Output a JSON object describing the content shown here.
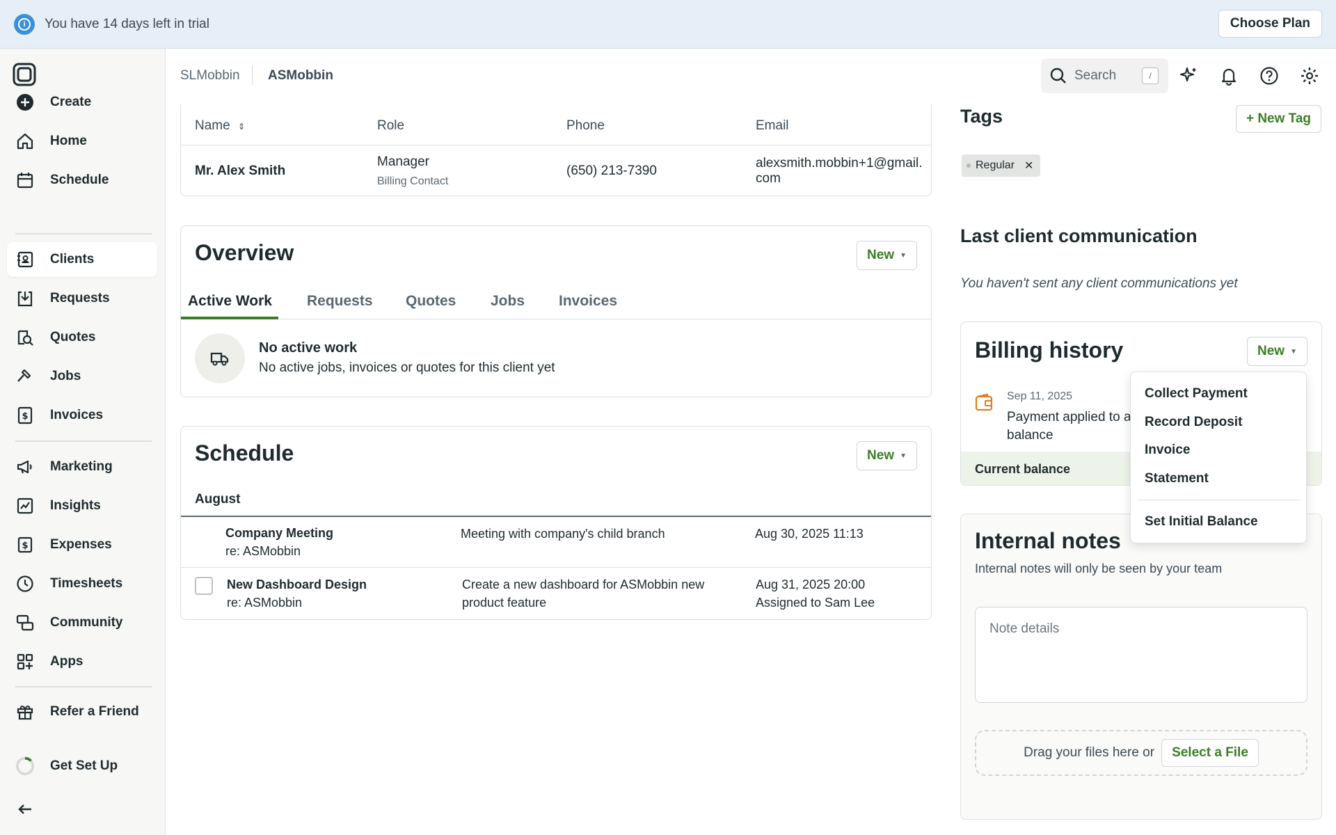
{
  "banner": {
    "message": "You have 14 days left in trial",
    "cta": "Choose Plan"
  },
  "sidebar": {
    "items": [
      {
        "label": "Create",
        "icon": "plus-circle-icon"
      },
      {
        "label": "Home",
        "icon": "home-icon"
      },
      {
        "label": "Schedule",
        "icon": "calendar-icon"
      },
      {
        "label": "Clients",
        "icon": "clients-icon",
        "active": true
      },
      {
        "label": "Requests",
        "icon": "requests-icon"
      },
      {
        "label": "Quotes",
        "icon": "quotes-icon"
      },
      {
        "label": "Jobs",
        "icon": "hammer-icon"
      },
      {
        "label": "Invoices",
        "icon": "invoice-icon"
      },
      {
        "label": "Marketing",
        "icon": "megaphone-icon"
      },
      {
        "label": "Insights",
        "icon": "chart-icon"
      },
      {
        "label": "Expenses",
        "icon": "expenses-icon"
      },
      {
        "label": "Timesheets",
        "icon": "clock-icon"
      },
      {
        "label": "Community",
        "icon": "community-icon"
      },
      {
        "label": "Apps",
        "icon": "apps-icon"
      },
      {
        "label": "Refer a Friend",
        "icon": "gift-icon"
      },
      {
        "label": "Get Set Up",
        "icon": "progress-ring-icon"
      }
    ]
  },
  "header": {
    "breadcrumb": [
      "SLMobbin",
      "ASMobbin"
    ],
    "search": {
      "label": "Search",
      "shortcut": "/"
    }
  },
  "contacts": {
    "columns": [
      "Name",
      "Role",
      "Phone",
      "Email"
    ],
    "row": {
      "name": "Mr. Alex Smith",
      "role": "Manager",
      "role_sub": "Billing Contact",
      "phone": "(650) 213-7390",
      "email_line1": "alexsmith.mobbin+1@gmail.",
      "email_line2": "com"
    }
  },
  "overview": {
    "title": "Overview",
    "new_label": "New",
    "tabs": [
      "Active Work",
      "Requests",
      "Quotes",
      "Jobs",
      "Invoices"
    ],
    "empty_title": "No active work",
    "empty_text": "No active jobs, invoices or quotes for this client yet"
  },
  "schedule": {
    "title": "Schedule",
    "new_label": "New",
    "month": "August",
    "rows": [
      {
        "title": "Company Meeting",
        "sub": "re: ASMobbin",
        "desc1": "Meeting with company's child branch",
        "desc2": "",
        "date": "Aug 30, 2025 11:13",
        "assigned": ""
      },
      {
        "title": "New Dashboard Design",
        "sub": "re: ASMobbin",
        "desc1": "Create a new dashboard for ASMobbin new",
        "desc2": "product feature",
        "date": "Aug 31, 2025 20:00",
        "assigned": "Assigned to Sam Lee"
      }
    ]
  },
  "tags": {
    "title": "Tags",
    "new_label": "+ New Tag",
    "items": [
      "Regular"
    ]
  },
  "communication": {
    "title": "Last client communication",
    "empty": "You haven't sent any client communications yet"
  },
  "billing": {
    "title": "Billing history",
    "new_label": "New",
    "entry_date": "Sep 11, 2025",
    "entry_line1": "Payment applied to a",
    "entry_line2": "balance",
    "balance_label": "Current balance",
    "menu": [
      "Collect Payment",
      "Record Deposit",
      "Invoice",
      "Statement",
      "Set Initial Balance"
    ]
  },
  "notes": {
    "title": "Internal notes",
    "subtitle": "Internal notes will only be seen by your team",
    "placeholder": "Note details",
    "drop_text": "Drag your files here or",
    "select_file": "Select a File"
  },
  "colors": {
    "accent": "#3a7d26",
    "banner_bg": "#e6eef7",
    "info_blue": "#3d8fd9"
  }
}
